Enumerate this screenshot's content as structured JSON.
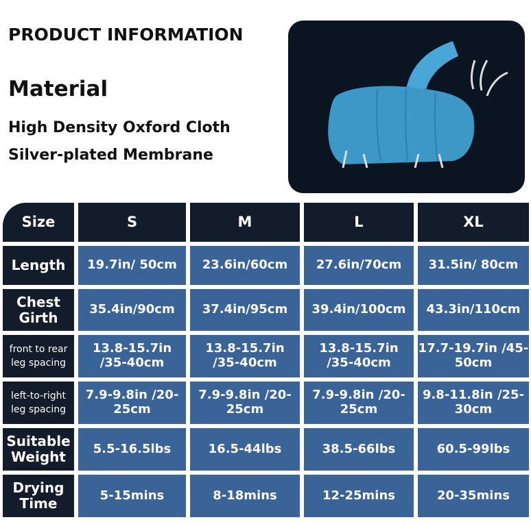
{
  "header": {
    "title": "PRODUCT INFORMATION",
    "material_heading": "Material",
    "materials": [
      "High Density Oxford Cloth",
      "Silver-plated Membrane"
    ]
  },
  "photo": {
    "icon": "pet-dryer-bag-photo",
    "bg": "#0b1522",
    "fabric": "#3d97c7"
  },
  "table": {
    "columns": [
      "Size",
      "S",
      "M",
      "L",
      "XL"
    ],
    "rows": [
      {
        "label": "Length",
        "values": [
          "19.7in/ 50cm",
          "23.6in/60cm",
          "27.6in/70cm",
          "31.5in/ 80cm"
        ]
      },
      {
        "label": "Chest Girth",
        "values": [
          "35.4in/90cm",
          "37.4in/95cm",
          "39.4in/100cm",
          "43.3in/110cm"
        ]
      },
      {
        "label": "front to rear leg spacing",
        "values": [
          "13.8-15.7in /35-40cm",
          "13.8-15.7in /35-40cm",
          "13.8-15.7in /35-40cm",
          "17.7-19.7in /45-50cm"
        ]
      },
      {
        "label": "left-to-right leg spacing",
        "values": [
          "7.9-9.8in /20-25cm",
          "7.9-9.8in /20-25cm",
          "7.9-9.8in /20-25cm",
          "9.8-11.8in /25-30cm"
        ]
      },
      {
        "label": "Suitable Weight",
        "values": [
          "5.5-16.5lbs",
          "16.5-44lbs",
          "38.5-66lbs",
          "60.5-99lbs"
        ]
      },
      {
        "label": "Drying Time",
        "values": [
          "5-15mins",
          "8-18mins",
          "12-25mins",
          "20-35mins"
        ]
      }
    ]
  },
  "colors": {
    "dark": "#131c2b",
    "cell": "#3a6497"
  }
}
